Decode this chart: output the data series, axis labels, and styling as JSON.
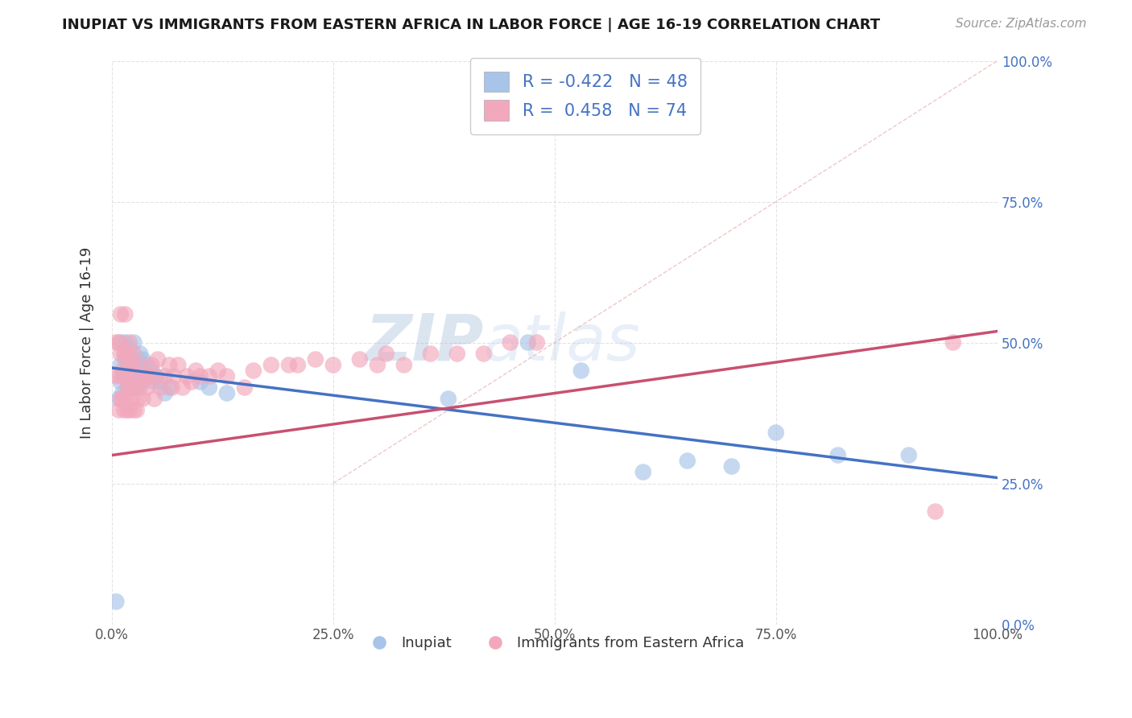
{
  "title": "INUPIAT VS IMMIGRANTS FROM EASTERN AFRICA IN LABOR FORCE | AGE 16-19 CORRELATION CHART",
  "source": "Source: ZipAtlas.com",
  "ylabel": "In Labor Force | Age 16-19",
  "legend_label_1": "Inupiat",
  "legend_label_2": "Immigrants from Eastern Africa",
  "r1": -0.422,
  "n1": 48,
  "r2": 0.458,
  "n2": 74,
  "color_blue": "#A8C4E8",
  "color_pink": "#F2A8BC",
  "color_blue_line": "#4472C4",
  "color_pink_line": "#C85070",
  "watermark_color": "#C8D8EE",
  "watermark": "ZIPatlas",
  "right_tick_color": "#4472C4",
  "blue_line_start_y": 0.455,
  "blue_line_end_y": 0.26,
  "pink_line_start_y": 0.3,
  "pink_line_end_y": 0.52,
  "inupiat_x": [
    0.005,
    0.008,
    0.01,
    0.01,
    0.01,
    0.012,
    0.015,
    0.015,
    0.015,
    0.018,
    0.018,
    0.02,
    0.02,
    0.02,
    0.022,
    0.022,
    0.025,
    0.025,
    0.025,
    0.028,
    0.028,
    0.03,
    0.03,
    0.032,
    0.032,
    0.035,
    0.035,
    0.038,
    0.04,
    0.042,
    0.045,
    0.048,
    0.05,
    0.055,
    0.06,
    0.065,
    0.1,
    0.11,
    0.13,
    0.38,
    0.47,
    0.53,
    0.6,
    0.65,
    0.7,
    0.75,
    0.82,
    0.9
  ],
  "inupiat_y": [
    0.04,
    0.4,
    0.43,
    0.46,
    0.5,
    0.41,
    0.44,
    0.47,
    0.5,
    0.42,
    0.46,
    0.43,
    0.46,
    0.49,
    0.42,
    0.47,
    0.43,
    0.46,
    0.5,
    0.42,
    0.46,
    0.43,
    0.47,
    0.44,
    0.48,
    0.43,
    0.47,
    0.44,
    0.46,
    0.44,
    0.45,
    0.43,
    0.44,
    0.43,
    0.41,
    0.42,
    0.43,
    0.42,
    0.41,
    0.4,
    0.5,
    0.45,
    0.27,
    0.29,
    0.28,
    0.34,
    0.3,
    0.3
  ],
  "eastern_x": [
    0.005,
    0.005,
    0.008,
    0.008,
    0.01,
    0.01,
    0.01,
    0.01,
    0.012,
    0.012,
    0.014,
    0.014,
    0.015,
    0.015,
    0.015,
    0.015,
    0.018,
    0.018,
    0.018,
    0.02,
    0.02,
    0.02,
    0.02,
    0.022,
    0.022,
    0.025,
    0.025,
    0.025,
    0.028,
    0.028,
    0.03,
    0.03,
    0.032,
    0.032,
    0.035,
    0.038,
    0.04,
    0.042,
    0.045,
    0.048,
    0.05,
    0.052,
    0.055,
    0.06,
    0.065,
    0.068,
    0.07,
    0.075,
    0.08,
    0.085,
    0.09,
    0.095,
    0.1,
    0.11,
    0.12,
    0.13,
    0.15,
    0.16,
    0.18,
    0.2,
    0.21,
    0.23,
    0.25,
    0.28,
    0.3,
    0.31,
    0.33,
    0.36,
    0.39,
    0.42,
    0.45,
    0.48,
    0.93,
    0.95
  ],
  "eastern_y": [
    0.44,
    0.5,
    0.38,
    0.5,
    0.4,
    0.44,
    0.48,
    0.55,
    0.4,
    0.45,
    0.38,
    0.48,
    0.4,
    0.44,
    0.48,
    0.55,
    0.38,
    0.42,
    0.48,
    0.38,
    0.42,
    0.46,
    0.5,
    0.4,
    0.46,
    0.38,
    0.42,
    0.48,
    0.38,
    0.44,
    0.4,
    0.44,
    0.42,
    0.46,
    0.4,
    0.44,
    0.42,
    0.44,
    0.46,
    0.4,
    0.44,
    0.47,
    0.42,
    0.44,
    0.46,
    0.42,
    0.44,
    0.46,
    0.42,
    0.44,
    0.43,
    0.45,
    0.44,
    0.44,
    0.45,
    0.44,
    0.42,
    0.45,
    0.46,
    0.46,
    0.46,
    0.47,
    0.46,
    0.47,
    0.46,
    0.48,
    0.46,
    0.48,
    0.48,
    0.48,
    0.5,
    0.5,
    0.2,
    0.5
  ],
  "xlim": [
    0.0,
    1.0
  ],
  "ylim": [
    0.0,
    1.0
  ],
  "xticks": [
    0.0,
    0.25,
    0.5,
    0.75,
    1.0
  ],
  "yticks": [
    0.0,
    0.25,
    0.5,
    0.75,
    1.0
  ],
  "xticklabels": [
    "0.0%",
    "25.0%",
    "50.0%",
    "75.0%",
    "100.0%"
  ],
  "yticklabels_right": [
    "0.0%",
    "25.0%",
    "50.0%",
    "75.0%",
    "100.0%"
  ]
}
